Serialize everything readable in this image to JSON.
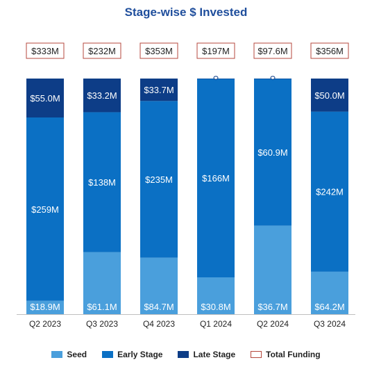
{
  "chart_data": {
    "type": "bar",
    "stacked": true,
    "title": "Stage-wise $ Invested",
    "categories": [
      "Q2 2023",
      "Q3 2023",
      "Q4 2023",
      "Q1 2024",
      "Q2 2024",
      "Q3 2024"
    ],
    "series": [
      {
        "name": "Seed",
        "color": "#4a9fdc",
        "values": [
          18.9,
          61.1,
          84.7,
          30.8,
          36.7,
          64.2
        ],
        "labels": [
          "$18.9M",
          "$61.1M",
          "$84.7M",
          "$30.8M",
          "$36.7M",
          "$64.2M"
        ]
      },
      {
        "name": "Early Stage",
        "color": "#0b70c4",
        "values": [
          259,
          138,
          235,
          166,
          60.9,
          242
        ],
        "labels": [
          "$259M",
          "$138M",
          "$235M",
          "$166M",
          "$60.9M",
          "$242M"
        ]
      },
      {
        "name": "Late Stage",
        "color": "#0d3d87",
        "values": [
          55.0,
          33.2,
          33.7,
          0.2,
          0.1,
          50.0
        ],
        "labels": [
          "$55.0M",
          "$33.2M",
          "$33.7M",
          "",
          "",
          "$50.0M"
        ]
      }
    ],
    "total_funding": {
      "name": "Total Funding",
      "border_color": "#b5473c",
      "labels": [
        "$333M",
        "$232M",
        "$353M",
        "$197M",
        "$97.6M",
        "$356M"
      ]
    },
    "legend": {
      "position": "bottom",
      "items": [
        {
          "label": "Seed",
          "color": "#4a9fdc"
        },
        {
          "label": "Early Stage",
          "color": "#0b70c4"
        },
        {
          "label": "Late Stage",
          "color": "#0d3d87"
        },
        {
          "label": "Total Funding",
          "color": "#b5473c"
        }
      ]
    },
    "grid": false
  }
}
